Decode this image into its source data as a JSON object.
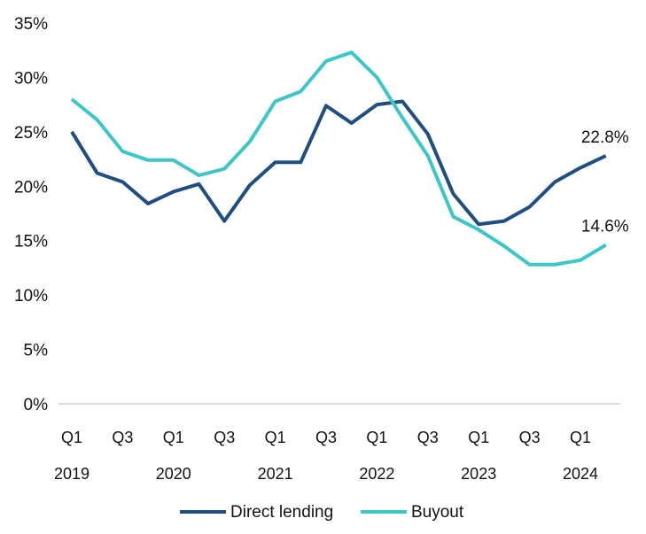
{
  "chart_data": {
    "type": "line",
    "title": "",
    "xlabel": "",
    "ylabel": "",
    "ylim": [
      0,
      35
    ],
    "yticks": [
      "0%",
      "5%",
      "10%",
      "15%",
      "20%",
      "25%",
      "30%",
      "35%"
    ],
    "x": [
      "Q1 2019",
      "Q2 2019",
      "Q3 2019",
      "Q4 2019",
      "Q1 2020",
      "Q2 2020",
      "Q3 2020",
      "Q4 2020",
      "Q1 2021",
      "Q2 2021",
      "Q3 2021",
      "Q4 2021",
      "Q1 2022",
      "Q2 2022",
      "Q3 2022",
      "Q4 2022",
      "Q1 2023",
      "Q2 2023",
      "Q3 2023",
      "Q4 2023",
      "Q1 2024",
      "Q2 2024"
    ],
    "xtick_quarters": [
      "Q1",
      "Q3",
      "Q1",
      "Q3",
      "Q1",
      "Q3",
      "Q1",
      "Q3",
      "Q1",
      "Q3",
      "Q1"
    ],
    "xtick_years": [
      "2019",
      "2020",
      "2021",
      "2022",
      "2023",
      "2024"
    ],
    "series": [
      {
        "name": "Direct lending",
        "color": "#1f4e82",
        "values": [
          25.0,
          21.2,
          20.4,
          18.4,
          19.5,
          20.2,
          16.8,
          20.1,
          22.2,
          22.2,
          27.4,
          25.8,
          27.5,
          27.8,
          24.8,
          19.3,
          16.5,
          16.8,
          18.1,
          20.4,
          21.7,
          22.8
        ],
        "end_label": "22.8%"
      },
      {
        "name": "Buyout",
        "color": "#3cc6c8",
        "values": [
          28.0,
          26.1,
          23.2,
          22.4,
          22.4,
          21.0,
          21.6,
          24.1,
          27.8,
          28.7,
          31.5,
          32.3,
          30.0,
          26.3,
          22.8,
          17.2,
          16.0,
          14.5,
          12.8,
          12.8,
          13.2,
          14.6
        ],
        "end_label": "14.6%"
      }
    ],
    "legend": "bottom",
    "grid": false
  }
}
